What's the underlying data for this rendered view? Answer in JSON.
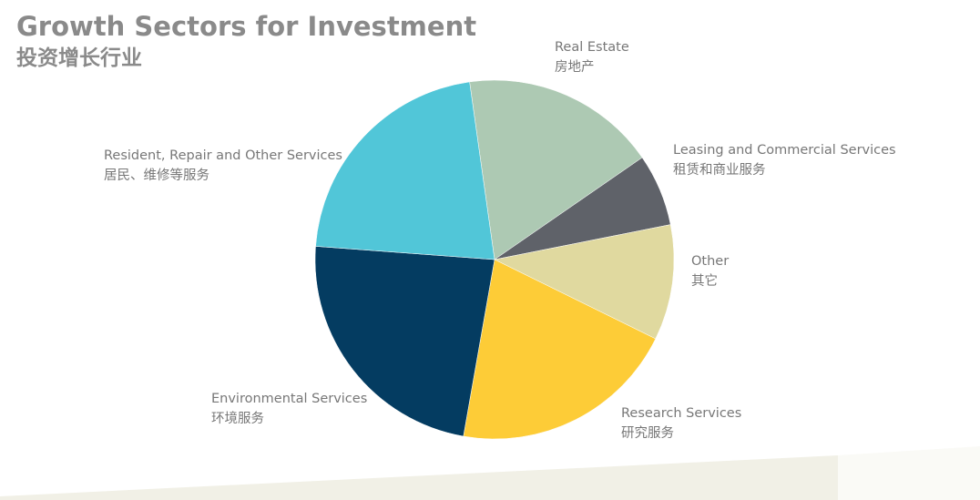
{
  "title": "Growth Sectors for Investment",
  "subtitle": "投资增长行业",
  "chart_data": {
    "type": "pie",
    "title": "Growth Sectors for Investment",
    "subtitle": "投资增长行业",
    "slices": [
      {
        "label": "Real Estate",
        "label_cn": "房地产",
        "value": 17.6,
        "color": "#adc9b3"
      },
      {
        "label": "Leasing and Commercial Services",
        "label_cn": "租赁和商业服务",
        "value": 6.5,
        "color": "#5f6269"
      },
      {
        "label": "Other",
        "label_cn": "其它",
        "value": 10.4,
        "color": "#e0d99f"
      },
      {
        "label": "Research Services",
        "label_cn": "研究服务",
        "value": 20.5,
        "color": "#fdcc37"
      },
      {
        "label": "Environmental Services",
        "label_cn": "环境服务",
        "value": 23.4,
        "color": "#043c61"
      },
      {
        "label": "Resident, Repair and Other Services",
        "label_cn": "居民、维修等服务",
        "value": 21.6,
        "color": "#51c6d8"
      }
    ]
  }
}
